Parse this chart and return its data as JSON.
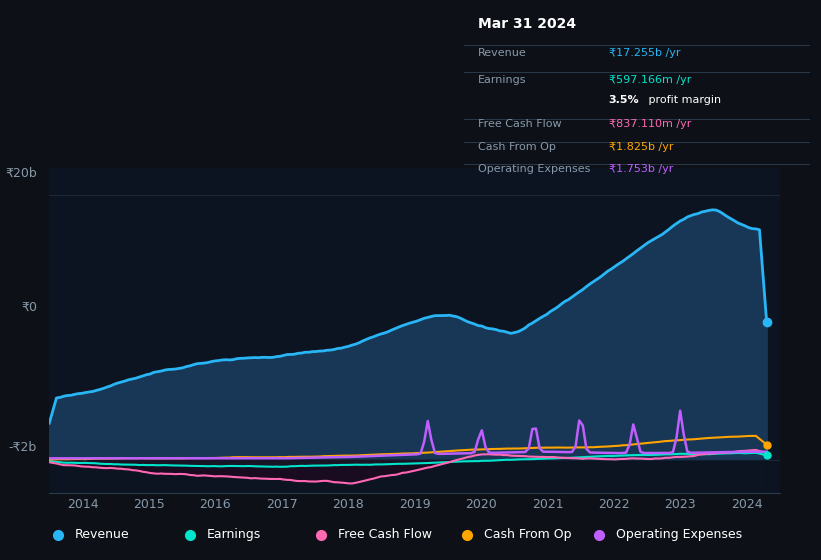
{
  "background_color": "#0d1117",
  "plot_bg_color": "#0d1421",
  "grid_color": "#1e2a3a",
  "y_label_top": "₹20b",
  "y_label_zero": "₹0",
  "y_label_neg": "-₹2b",
  "x_ticks": [
    "2014",
    "2015",
    "2016",
    "2017",
    "2018",
    "2019",
    "2020",
    "2021",
    "2022",
    "2023",
    "2024"
  ],
  "ylim": [
    -2.5,
    22
  ],
  "series": {
    "Revenue": {
      "color": "#29b6f6",
      "fill_color": "#1a3a5c",
      "linewidth": 2.0
    },
    "Earnings": {
      "color": "#00e5cc",
      "linewidth": 1.5
    },
    "FreeCashFlow": {
      "color": "#ff69b4",
      "linewidth": 1.5
    },
    "CashFromOp": {
      "color": "#ffa500",
      "linewidth": 1.5
    },
    "OperatingExpenses": {
      "color": "#bf5fff",
      "linewidth": 1.8
    }
  },
  "legend": [
    {
      "label": "Revenue",
      "color": "#29b6f6"
    },
    {
      "label": "Earnings",
      "color": "#00e5cc"
    },
    {
      "label": "Free Cash Flow",
      "color": "#ff69b4"
    },
    {
      "label": "Cash From Op",
      "color": "#ffa500"
    },
    {
      "label": "Operating Expenses",
      "color": "#bf5fff"
    }
  ],
  "tooltip": {
    "date": "Mar 31 2024",
    "rows": [
      {
        "label": "Revenue",
        "value": "₹17.255b /yr",
        "value_color": "#29b6f6"
      },
      {
        "label": "Earnings",
        "value": "₹597.166m /yr",
        "value_color": "#00e5cc"
      },
      {
        "label": "",
        "value": "3.5% profit margin",
        "value_color": "#ffffff",
        "bold_prefix": "3.5%"
      },
      {
        "label": "Free Cash Flow",
        "value": "₹837.110m /yr",
        "value_color": "#ff69b4"
      },
      {
        "label": "Cash From Op",
        "value": "₹1.825b /yr",
        "value_color": "#ffa500"
      },
      {
        "label": "Operating Expenses",
        "value": "₹1.753b /yr",
        "value_color": "#bf5fff"
      }
    ]
  }
}
